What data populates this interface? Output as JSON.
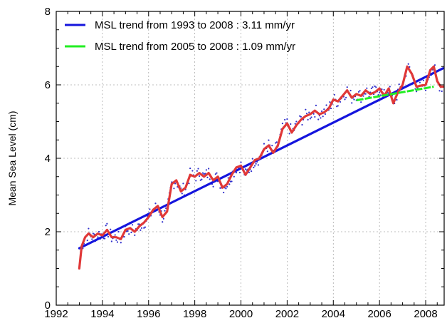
{
  "chart_data": {
    "type": "line",
    "title": "",
    "xlabel": "",
    "ylabel": "Mean Sea Level (cm)",
    "xlim": [
      1992,
      2008.8
    ],
    "ylim": [
      0,
      8
    ],
    "xticks": [
      1992,
      1994,
      1996,
      1998,
      2000,
      2002,
      2004,
      2006,
      2008
    ],
    "yticks": [
      0,
      2,
      4,
      6,
      8
    ],
    "grid": true,
    "legend_position": "top-left",
    "colors": {
      "trend_long": "#1515dd",
      "trend_short": "#22ee22",
      "smoothed": "#e03838",
      "raw": "#3030cc"
    },
    "series": [
      {
        "name": "MSL trend from 1993 to 2008 : 3.11 mm/yr",
        "kind": "trend",
        "color": "#1515dd",
        "x": [
          1993.0,
          2008.75
        ],
        "y": [
          1.55,
          6.45
        ]
      },
      {
        "name": "MSL trend from 2005 to 2008 : 1.09 mm/yr",
        "kind": "trend",
        "color": "#22ee22",
        "x": [
          2005.0,
          2008.35
        ],
        "y": [
          5.58,
          5.95
        ]
      },
      {
        "kind": "smoothed",
        "color": "#e03838",
        "x": [
          1993.0,
          1993.1,
          1993.25,
          1993.4,
          1993.6,
          1993.8,
          1994.0,
          1994.2,
          1994.4,
          1994.6,
          1994.8,
          1995.0,
          1995.2,
          1995.4,
          1995.6,
          1995.8,
          1996.0,
          1996.2,
          1996.4,
          1996.6,
          1996.8,
          1997.0,
          1997.2,
          1997.4,
          1997.6,
          1997.8,
          1998.0,
          1998.2,
          1998.4,
          1998.6,
          1998.8,
          1999.0,
          1999.2,
          1999.4,
          1999.6,
          1999.8,
          2000.0,
          2000.2,
          2000.4,
          2000.6,
          2000.8,
          2001.0,
          2001.2,
          2001.4,
          2001.6,
          2001.8,
          2002.0,
          2002.2,
          2002.4,
          2002.6,
          2002.8,
          2003.0,
          2003.2,
          2003.4,
          2003.6,
          2003.8,
          2004.0,
          2004.2,
          2004.4,
          2004.6,
          2004.8,
          2005.0,
          2005.2,
          2005.4,
          2005.6,
          2005.8,
          2006.0,
          2006.2,
          2006.4,
          2006.6,
          2006.8,
          2007.0,
          2007.2,
          2007.4,
          2007.6,
          2007.8,
          2008.0,
          2008.2,
          2008.35,
          2008.5,
          2008.65,
          2008.75
        ],
        "y": [
          1.0,
          1.6,
          1.85,
          1.95,
          1.85,
          1.95,
          1.9,
          2.05,
          1.85,
          1.85,
          1.8,
          2.05,
          2.1,
          2.0,
          2.15,
          2.25,
          2.4,
          2.6,
          2.7,
          2.4,
          2.55,
          3.3,
          3.4,
          3.1,
          3.2,
          3.55,
          3.5,
          3.6,
          3.5,
          3.6,
          3.4,
          3.5,
          3.2,
          3.3,
          3.55,
          3.75,
          3.8,
          3.55,
          3.75,
          3.95,
          4.0,
          4.25,
          4.35,
          4.15,
          4.35,
          4.8,
          4.95,
          4.7,
          4.9,
          5.05,
          5.15,
          5.2,
          5.3,
          5.2,
          5.25,
          5.35,
          5.6,
          5.55,
          5.7,
          5.85,
          5.65,
          5.75,
          5.7,
          5.85,
          5.75,
          5.8,
          5.9,
          5.7,
          5.9,
          5.5,
          5.8,
          6.0,
          6.5,
          6.3,
          5.95,
          5.98,
          6.0,
          6.4,
          6.5,
          6.1,
          5.95,
          5.95
        ]
      }
    ]
  }
}
